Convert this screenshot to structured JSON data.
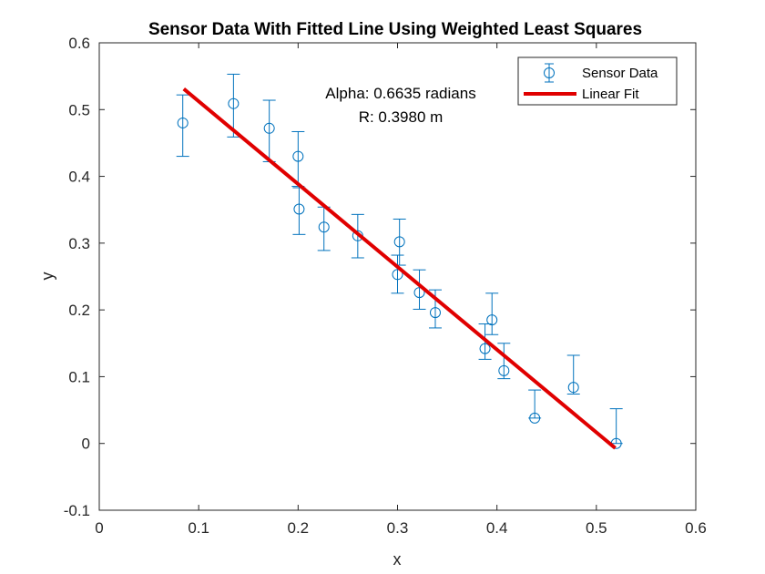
{
  "chart_data": {
    "type": "scatter",
    "title": "Sensor Data With Fitted Line Using Weighted Least Squares",
    "xlabel": "x",
    "ylabel": "y",
    "xlim": [
      0,
      0.6
    ],
    "ylim": [
      -0.1,
      0.6
    ],
    "xticks": [
      0,
      0.1,
      0.2,
      0.3,
      0.4,
      0.5,
      0.6
    ],
    "xtick_labels": [
      "0",
      "0.1",
      "0.2",
      "0.3",
      "0.4",
      "0.5",
      "0.6"
    ],
    "yticks": [
      -0.1,
      0,
      0.1,
      0.2,
      0.3,
      0.4,
      0.5,
      0.6
    ],
    "ytick_labels": [
      "-0.1",
      "0",
      "0.1",
      "0.2",
      "0.3",
      "0.4",
      "0.5",
      "0.6"
    ],
    "grid": false,
    "legend_position": "top-right",
    "annotation": {
      "line1": "Alpha: 0.6635 radians",
      "line2": "R: 0.3980 m"
    },
    "series": [
      {
        "name": "Sensor Data",
        "kind": "errorbar",
        "color": "#0072BD",
        "x": [
          0.084,
          0.135,
          0.171,
          0.2,
          0.201,
          0.226,
          0.26,
          0.3,
          0.302,
          0.322,
          0.338,
          0.388,
          0.395,
          0.407,
          0.438,
          0.477,
          0.52
        ],
        "y": [
          0.48,
          0.509,
          0.472,
          0.43,
          0.351,
          0.324,
          0.311,
          0.253,
          0.302,
          0.226,
          0.196,
          0.142,
          0.185,
          0.109,
          0.038,
          0.084,
          0.0
        ],
        "err_low": [
          0.05,
          0.05,
          0.05,
          0.045,
          0.038,
          0.035,
          0.033,
          0.028,
          0.035,
          0.025,
          0.023,
          0.016,
          0.022,
          0.012,
          0.0,
          0.01,
          0.0
        ],
        "err_high": [
          0.042,
          0.044,
          0.042,
          0.037,
          0.032,
          0.03,
          0.032,
          0.029,
          0.034,
          0.034,
          0.034,
          0.037,
          0.04,
          0.041,
          0.042,
          0.048,
          0.052
        ]
      },
      {
        "name": "Linear Fit",
        "kind": "line",
        "color": "#E00000",
        "x": [
          0.085,
          0.519
        ],
        "y": [
          0.531,
          -0.007
        ]
      }
    ]
  }
}
